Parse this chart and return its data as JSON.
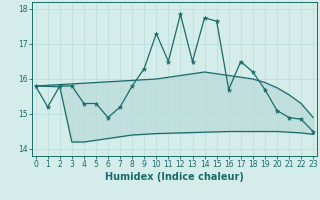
{
  "x": [
    0,
    1,
    2,
    3,
    4,
    5,
    6,
    7,
    8,
    9,
    10,
    11,
    12,
    13,
    14,
    15,
    16,
    17,
    18,
    19,
    20,
    21,
    22,
    23
  ],
  "line_main": [
    15.8,
    15.2,
    15.8,
    15.8,
    15.3,
    15.3,
    14.9,
    15.2,
    15.8,
    16.3,
    17.3,
    16.5,
    17.85,
    16.5,
    17.75,
    17.65,
    15.7,
    16.5,
    16.2,
    15.7,
    15.1,
    14.9,
    14.85,
    14.5
  ],
  "band_upper": [
    15.8,
    15.82,
    15.84,
    15.86,
    15.88,
    15.9,
    15.92,
    15.94,
    15.96,
    15.98,
    16.0,
    16.05,
    16.1,
    16.15,
    16.2,
    16.15,
    16.1,
    16.05,
    16.0,
    15.9,
    15.75,
    15.55,
    15.3,
    14.9
  ],
  "band_lower": [
    15.8,
    15.79,
    15.78,
    14.2,
    14.2,
    14.25,
    14.3,
    14.35,
    14.4,
    14.42,
    14.44,
    14.45,
    14.46,
    14.47,
    14.48,
    14.49,
    14.5,
    14.5,
    14.5,
    14.5,
    14.5,
    14.48,
    14.46,
    14.42
  ],
  "bg_color": "#d4edea",
  "line_color": "#1a6b6b",
  "grid_color": "#b8ddd9",
  "xlabel": "Humidex (Indice chaleur)",
  "ylim": [
    13.8,
    18.2
  ],
  "xlim": [
    -0.3,
    23.3
  ],
  "yticks": [
    14,
    15,
    16,
    17,
    18
  ],
  "xticks": [
    0,
    1,
    2,
    3,
    4,
    5,
    6,
    7,
    8,
    9,
    10,
    11,
    12,
    13,
    14,
    15,
    16,
    17,
    18,
    19,
    20,
    21,
    22,
    23
  ],
  "tick_fontsize": 5.5,
  "xlabel_fontsize": 7
}
